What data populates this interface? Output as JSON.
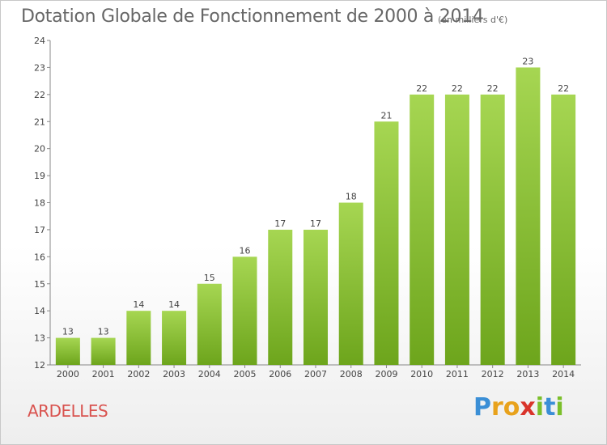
{
  "chart_data": {
    "type": "bar",
    "title": "Dotation Globale de Fonctionnement de 2000 à 2014",
    "unit_note": "(en milliers d'€)",
    "categories": [
      "2000",
      "2001",
      "2002",
      "2003",
      "2004",
      "2005",
      "2006",
      "2007",
      "2008",
      "2009",
      "2010",
      "2011",
      "2012",
      "2013",
      "2014"
    ],
    "values": [
      13,
      13,
      14,
      14,
      15,
      16,
      17,
      17,
      18,
      21,
      22,
      22,
      22,
      23,
      22
    ],
    "ylim": [
      12,
      24
    ],
    "yticks": [
      12,
      13,
      14,
      15,
      16,
      17,
      18,
      19,
      20,
      21,
      22,
      23,
      24
    ],
    "grid": false,
    "bar_color_top": "#a6d652",
    "bar_color_bottom": "#6da51c"
  },
  "footer": {
    "place_name": "ARDELLES",
    "logo_letters": [
      "P",
      "r",
      "o",
      "x",
      "i",
      "t",
      "i"
    ],
    "logo_colors": [
      "#3b8fd6",
      "#e8a21c",
      "#e8a21c",
      "#d9342b",
      "#7bbf2a",
      "#3b8fd6",
      "#7bbf2a"
    ]
  }
}
